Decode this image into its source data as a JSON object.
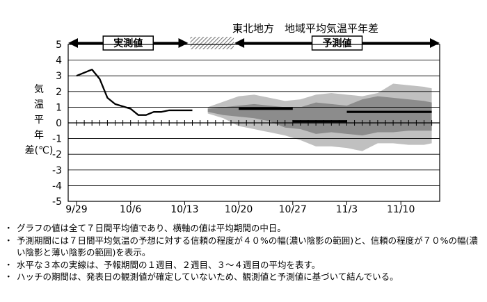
{
  "chart_data": {
    "type": "line",
    "title": "東北地方　地域平均気温平年差",
    "ylabel": "気温平年差(℃)",
    "ylim": [
      -5,
      5
    ],
    "yticks": [
      "5",
      "4",
      "3",
      "2",
      "1",
      "0",
      "-1",
      "-2",
      "-3",
      "-4",
      "-5"
    ],
    "xlabels": [
      "9/29",
      "10/6",
      "10/13",
      "10/20",
      "10/27",
      "11/3",
      "11/10"
    ],
    "x_start": "9/29",
    "x_end": "11/14",
    "grid": true,
    "observed_label": "実測値",
    "forecast_label": "予測値",
    "observed": {
      "x": [
        "9/29",
        "9/30",
        "10/1",
        "10/2",
        "10/3",
        "10/4",
        "10/5",
        "10/6",
        "10/7",
        "10/8",
        "10/9",
        "10/10",
        "10/11",
        "10/12",
        "10/13",
        "10/14"
      ],
      "y": [
        3.0,
        3.2,
        3.4,
        2.8,
        1.6,
        1.2,
        1.05,
        0.9,
        0.5,
        0.5,
        0.7,
        0.7,
        0.8,
        0.8,
        0.8,
        0.8
      ]
    },
    "hatch_period": [
      "10/14",
      "10/20"
    ],
    "forecast_range": [
      "10/20",
      "11/14"
    ],
    "band_x": [
      "10/16",
      "10/18",
      "10/20",
      "10/22",
      "10/24",
      "10/26",
      "10/28",
      "10/30",
      "11/1",
      "11/3",
      "11/5",
      "11/7",
      "11/9",
      "11/11",
      "11/13",
      "11/14"
    ],
    "band70_upper": [
      1.0,
      1.35,
      1.7,
      1.8,
      1.6,
      1.4,
      1.5,
      1.8,
      1.9,
      1.8,
      1.7,
      1.9,
      2.5,
      2.4,
      2.3,
      2.2
    ],
    "band70_lower": [
      0.6,
      0.3,
      -0.2,
      -0.4,
      -0.6,
      -0.8,
      -1.1,
      -1.5,
      -1.5,
      -1.6,
      -1.8,
      -1.3,
      -1.3,
      -1.4,
      -1.4,
      -1.3
    ],
    "band40_upper": [
      0.9,
      1.0,
      1.1,
      1.2,
      1.1,
      1.0,
      1.0,
      1.3,
      1.2,
      1.1,
      1.5,
      1.7,
      1.6,
      1.5,
      1.4,
      1.3
    ],
    "band40_lower": [
      0.7,
      0.5,
      0.4,
      0.3,
      0.1,
      -0.3,
      -0.4,
      -0.7,
      -0.6,
      -0.7,
      -0.8,
      -0.6,
      -0.6,
      -0.5,
      -0.5,
      -0.5
    ],
    "weekly_means": [
      {
        "period": "1週目",
        "x": [
          "10/20",
          "10/27"
        ],
        "value": 0.9
      },
      {
        "period": "2週目",
        "x": [
          "10/27",
          "11/3"
        ],
        "value": 0.1
      },
      {
        "period": "3～4週目",
        "x": [
          "11/3",
          "11/14"
        ],
        "value": 0.7
      }
    ],
    "colors": {
      "band70": "#c0c0c0",
      "band40": "#8c8c8c",
      "line": "#000000",
      "hatch": "#777777"
    }
  },
  "notes": [
    "グラフの値は全て７日間平均値であり、横軸の値は平均期間の中日。",
    "予測期間には７日間平均気温の予想に対する信頼の程度が４０%の幅(濃い陰影の範囲)と、信頼の程度が７０%の幅(濃い陰影と薄い陰影の範囲)を表示。",
    "水平な３本の実線は、予報期間の１週目、２週目、３～４週目の平均を表す。",
    "ハッチの期間は、発表日の観測値が確定していないため、観測値と予測値に基づいて結んでいる。"
  ]
}
